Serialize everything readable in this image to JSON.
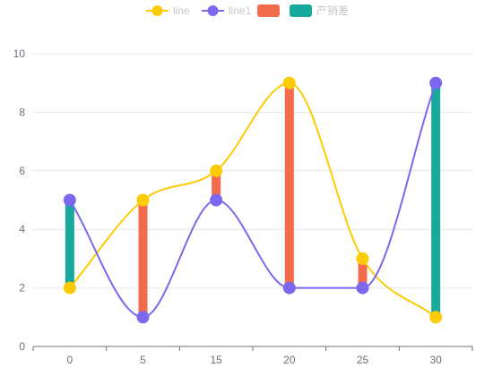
{
  "chart_data": {
    "type": "line",
    "categories": [
      "0",
      "5",
      "15",
      "20",
      "25",
      "30"
    ],
    "ylim": [
      0,
      10
    ],
    "yticks": [
      0,
      2,
      4,
      6,
      8,
      10
    ],
    "grid": true,
    "legend_position": "top-center",
    "series": [
      {
        "name": "line",
        "kind": "smooth-line",
        "color": "#fccb05",
        "values": [
          2,
          5,
          6,
          9,
          3,
          1
        ]
      },
      {
        "name": "line1",
        "kind": "smooth-line",
        "color": "#7b68ee",
        "values": [
          5,
          1,
          5,
          2,
          2,
          9
        ]
      }
    ],
    "bars": [
      {
        "name": "",
        "color": "#f26b4d",
        "category_index": [
          1,
          2,
          3,
          4
        ]
      },
      {
        "name": "产销差",
        "color": "#17a99b",
        "category_index": [
          0,
          5
        ]
      }
    ]
  }
}
